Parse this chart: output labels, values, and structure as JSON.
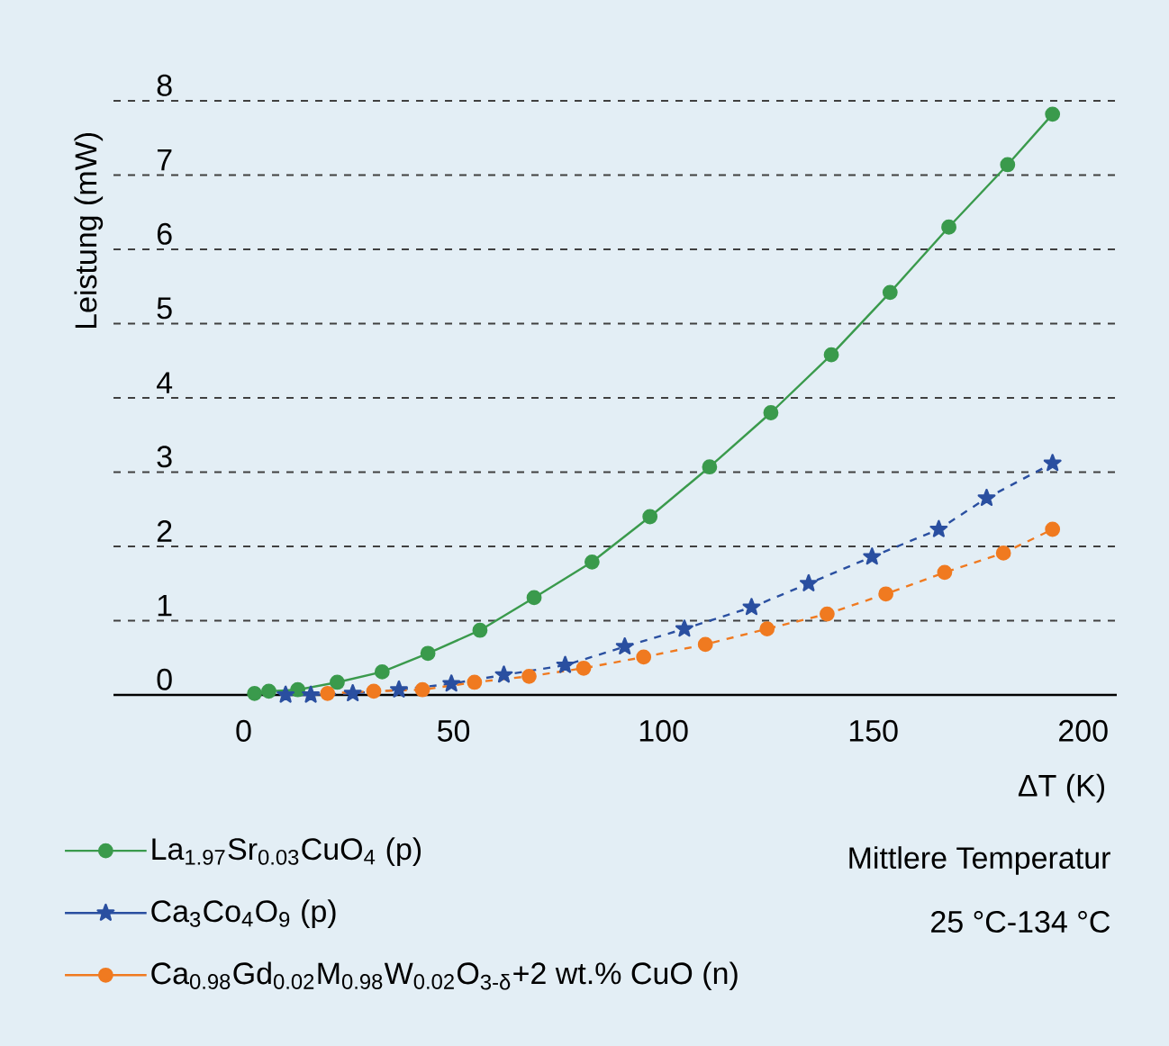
{
  "chart_data": {
    "type": "line",
    "ylabel": "Leistung (mW)",
    "xlabel": "ΔT (K)",
    "xlim": [
      -31,
      208
    ],
    "ylim": [
      0,
      8
    ],
    "xticks": [
      0,
      50,
      100,
      150,
      200
    ],
    "yticks": [
      0,
      1,
      2,
      3,
      4,
      5,
      6,
      7,
      8
    ],
    "grid": "y",
    "legend": "bottom left",
    "series": [
      {
        "name": "La$_{1.97}$Sr$_{0.03}$CuO$_{4}$ (p)",
        "color": "#3a9a4c",
        "marker": "circle",
        "line_style": "solid",
        "x": [
          2.6,
          6,
          12.9,
          22.3,
          33,
          43.9,
          56.3,
          69.2,
          83,
          96.8,
          111,
          125.6,
          140,
          154,
          168,
          182,
          192.7
        ],
        "values": [
          0.02,
          0.05,
          0.07,
          0.17,
          0.31,
          0.56,
          0.87,
          1.31,
          1.79,
          2.4,
          3.07,
          3.8,
          4.58,
          5.42,
          6.3,
          7.14,
          7.82
        ]
      },
      {
        "name": "Ca$_{3}$Co$_{4}$O$_{9}$ (p)",
        "color": "#2a4fa0",
        "marker": "star",
        "line_style": "dashed",
        "x": [
          10,
          16,
          26,
          37,
          49.5,
          62,
          76.6,
          90.8,
          105,
          121,
          134.6,
          149.7,
          165.6,
          177,
          192.7
        ],
        "values": [
          0.0,
          0.0,
          0.02,
          0.07,
          0.15,
          0.27,
          0.4,
          0.65,
          0.89,
          1.18,
          1.5,
          1.86,
          2.23,
          2.65,
          3.12
        ]
      },
      {
        "name": "Ca$_{0.98}$Gd$_{0.02}$M$_{0.98}$W$_{0.02}$O$_{3-δ}$+2 wt.% CuO (n)",
        "color": "#f07a20",
        "marker": "circle",
        "line_style": "dashed",
        "x": [
          20,
          31,
          42.6,
          55,
          68,
          81,
          95.3,
          110,
          124.7,
          139,
          153,
          167,
          181,
          192.7
        ],
        "values": [
          0.02,
          0.05,
          0.07,
          0.17,
          0.25,
          0.36,
          0.51,
          0.68,
          0.89,
          1.09,
          1.36,
          1.65,
          1.91,
          2.23
        ]
      }
    ],
    "annotations": [
      "Mittlere Temperatur",
      "25 °C-134 °C"
    ]
  }
}
